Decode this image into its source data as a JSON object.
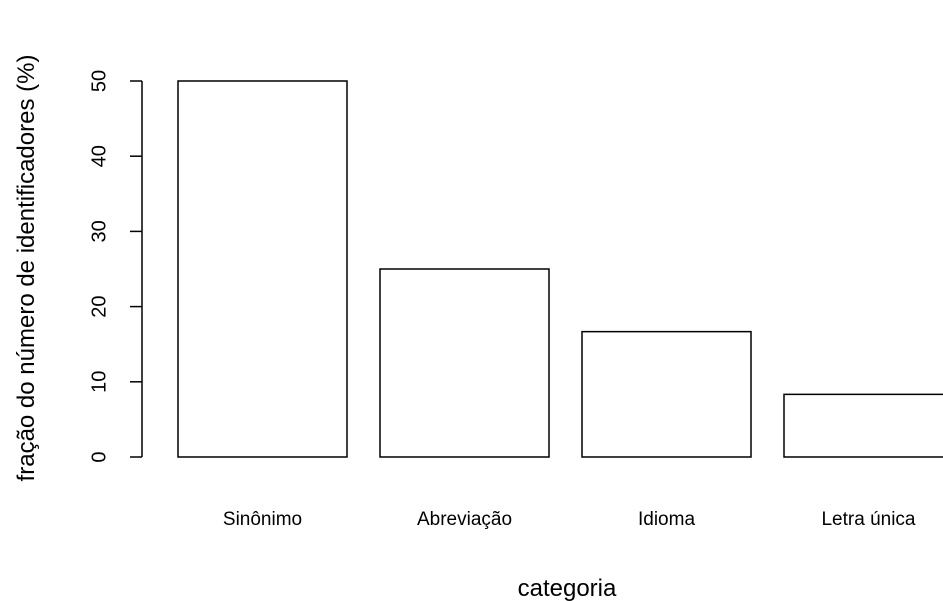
{
  "chart_data": {
    "type": "bar",
    "categories": [
      "Sinônimo",
      "Abreviação",
      "Idioma",
      "Letra única"
    ],
    "values": [
      50,
      25,
      16.67,
      8.33
    ],
    "title": "",
    "xlabel": "categoria",
    "ylabel": "fração do número de identificadores (%)",
    "ylim": [
      0,
      50
    ],
    "yticks": [
      0,
      10,
      20,
      30,
      40,
      50
    ],
    "bar_fill": "#ffffff",
    "bar_stroke": "#000000",
    "grid": false
  }
}
